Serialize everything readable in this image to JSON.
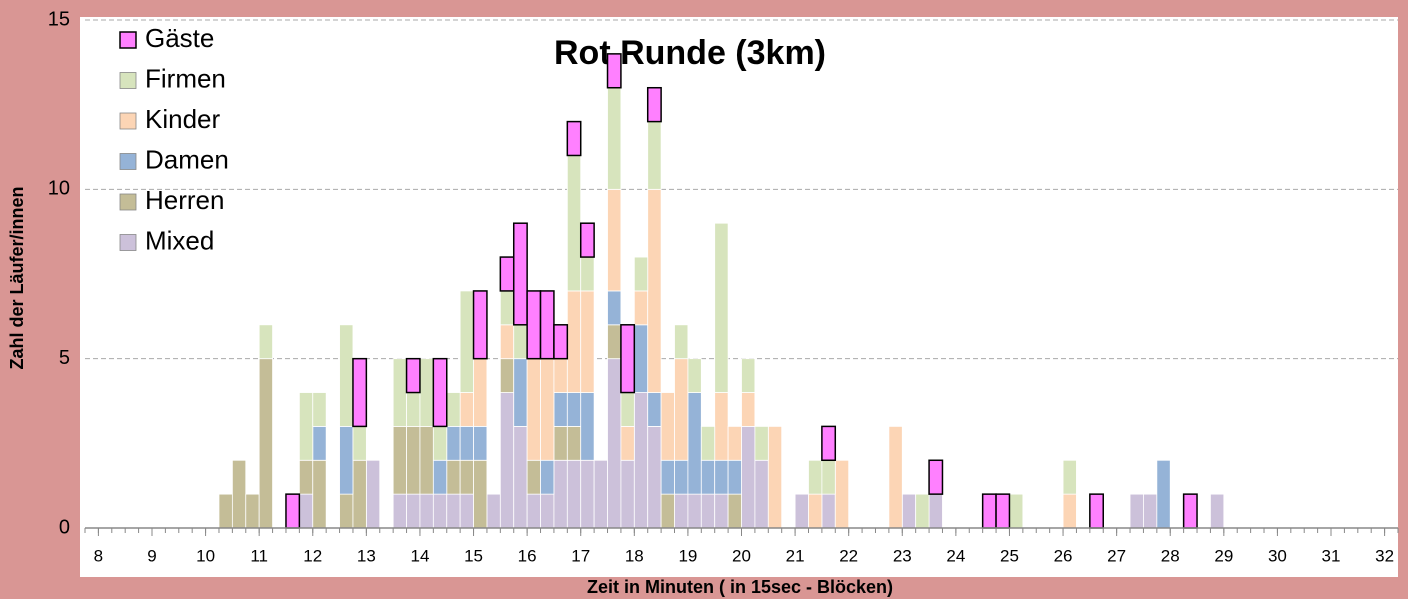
{
  "chart_data": {
    "type": "histogram",
    "title": "Rot Runde (3km)",
    "x_label": "Zeit in Minuten ( in 15sec - Blöcken)",
    "y_label": "Zahl der Läufer/innen",
    "stacked": true,
    "legend": "upper left",
    "grid": true,
    "xlim": [
      7.75,
      32.25
    ],
    "ylim": [
      0,
      15
    ],
    "xticks": [
      8,
      9,
      10,
      11,
      12,
      13,
      14,
      15,
      16,
      17,
      18,
      19,
      20,
      21,
      22,
      23,
      24,
      25,
      26,
      27,
      28,
      29,
      30,
      31,
      32
    ],
    "yticks": [
      0,
      5,
      10,
      15
    ],
    "bins": [
      7.75,
      8,
      8.25,
      8.5,
      8.75,
      9,
      9.25,
      9.5,
      9.75,
      10,
      10.25,
      10.5,
      10.75,
      11,
      11.25,
      11.5,
      11.75,
      12,
      12.25,
      12.5,
      12.75,
      13,
      13.25,
      13.5,
      13.75,
      14,
      14.25,
      14.5,
      14.75,
      15,
      15.25,
      15.5,
      15.75,
      16,
      16.25,
      16.5,
      16.75,
      17,
      17.25,
      17.5,
      17.75,
      18,
      18.25,
      18.5,
      18.75,
      19,
      19.25,
      19.5,
      19.75,
      20,
      20.25,
      20.5,
      20.75,
      21,
      21.25,
      21.5,
      21.75,
      22,
      22.25,
      22.5,
      22.75,
      23,
      23.25,
      23.5,
      23.75,
      24,
      24.25,
      24.5,
      24.75,
      25,
      25.25,
      25.5,
      25.75,
      26,
      26.25,
      26.5,
      26.75,
      27,
      27.25,
      27.5,
      27.75,
      28,
      28.25,
      28.5,
      28.75,
      29,
      29.25,
      29.5,
      29.75,
      30,
      30.25,
      30.5,
      30.75,
      31,
      31.25,
      31.5,
      31.75,
      32,
      32.25
    ],
    "series": [
      {
        "name": "Gäste",
        "color": "#ff80ff",
        "values": [
          0,
          0,
          0,
          0,
          0,
          0,
          0,
          0,
          0,
          0,
          0,
          0,
          0,
          0,
          0,
          1,
          0,
          0,
          0,
          0,
          2,
          0,
          0,
          0,
          1,
          0,
          2,
          0,
          0,
          2,
          0,
          1,
          3,
          2,
          2,
          1,
          1,
          1,
          0,
          1,
          2,
          0,
          1,
          0,
          0,
          0,
          0,
          0,
          0,
          0,
          0,
          0,
          0,
          0,
          0,
          1,
          0,
          0,
          0,
          0,
          0,
          0,
          0,
          1,
          0,
          0,
          0,
          1,
          1,
          0,
          0,
          0,
          0,
          0,
          0,
          1,
          0,
          0,
          0,
          0,
          0,
          0,
          1,
          0,
          0,
          0,
          0,
          0,
          0,
          0,
          0,
          0,
          0,
          0,
          0,
          0,
          0,
          0
        ]
      },
      {
        "name": "Firmen",
        "color": "#d7e4bd",
        "values": [
          0,
          0,
          0,
          0,
          0,
          0,
          0,
          0,
          0,
          0,
          0,
          0,
          0,
          1,
          0,
          0,
          2,
          1,
          0,
          3,
          1,
          0,
          0,
          2,
          1,
          2,
          1,
          1,
          3,
          0,
          0,
          1,
          1,
          0,
          0,
          0,
          4,
          1,
          0,
          3,
          1,
          1,
          2,
          0,
          1,
          1,
          1,
          5,
          0,
          1,
          1,
          0,
          0,
          0,
          1,
          1,
          0,
          0,
          0,
          0,
          0,
          0,
          1,
          0,
          0,
          0,
          0,
          0,
          0,
          1,
          0,
          0,
          0,
          1,
          0,
          0,
          0,
          0,
          0,
          0,
          0,
          0,
          0,
          0,
          0,
          0,
          0,
          0,
          0,
          0,
          0,
          0,
          0,
          0,
          0,
          0,
          0,
          0
        ]
      },
      {
        "name": "Kinder",
        "color": "#fcd5b5",
        "values": [
          0,
          0,
          0,
          0,
          0,
          0,
          0,
          0,
          0,
          0,
          0,
          0,
          0,
          0,
          0,
          0,
          0,
          0,
          0,
          0,
          0,
          0,
          0,
          0,
          0,
          0,
          0,
          0,
          1,
          2,
          0,
          1,
          0,
          3,
          3,
          1,
          3,
          3,
          0,
          3,
          1,
          1,
          6,
          2,
          3,
          0,
          0,
          2,
          1,
          1,
          0,
          3,
          0,
          0,
          1,
          0,
          2,
          0,
          0,
          0,
          3,
          0,
          0,
          0,
          0,
          0,
          0,
          0,
          0,
          0,
          0,
          0,
          0,
          1,
          0,
          0,
          0,
          0,
          0,
          0,
          0,
          0,
          0,
          0,
          0,
          0,
          0,
          0,
          0,
          0,
          0,
          0,
          0,
          0,
          0,
          0,
          0,
          0
        ]
      },
      {
        "name": "Damen",
        "color": "#95b3d7",
        "values": [
          0,
          0,
          0,
          0,
          0,
          0,
          0,
          0,
          0,
          0,
          0,
          0,
          0,
          0,
          0,
          0,
          0,
          1,
          0,
          2,
          0,
          0,
          0,
          0,
          0,
          0,
          1,
          1,
          1,
          1,
          0,
          0,
          2,
          0,
          1,
          1,
          1,
          2,
          0,
          1,
          0,
          2,
          1,
          1,
          1,
          3,
          1,
          1,
          1,
          0,
          0,
          0,
          0,
          0,
          0,
          0,
          0,
          0,
          0,
          0,
          0,
          0,
          0,
          0,
          0,
          0,
          0,
          0,
          0,
          0,
          0,
          0,
          0,
          0,
          0,
          0,
          0,
          0,
          0,
          0,
          2,
          0,
          0,
          0,
          0,
          0,
          0,
          0,
          0,
          0,
          0,
          0,
          0,
          0,
          0,
          0,
          0,
          0
        ]
      },
      {
        "name": "Herren",
        "color": "#c4bd97",
        "values": [
          0,
          0,
          0,
          0,
          0,
          0,
          0,
          0,
          0,
          0,
          1,
          2,
          1,
          5,
          0,
          0,
          1,
          2,
          0,
          1,
          2,
          0,
          0,
          2,
          2,
          2,
          0,
          1,
          1,
          2,
          0,
          1,
          0,
          1,
          0,
          1,
          1,
          0,
          0,
          1,
          0,
          0,
          0,
          1,
          0,
          0,
          0,
          0,
          1,
          0,
          0,
          0,
          0,
          0,
          0,
          0,
          0,
          0,
          0,
          0,
          0,
          0,
          0,
          0,
          0,
          0,
          0,
          0,
          0,
          0,
          0,
          0,
          0,
          0,
          0,
          0,
          0,
          0,
          0,
          0,
          0,
          0,
          0,
          0,
          0,
          0,
          0,
          0,
          0,
          0,
          0,
          0,
          0,
          0,
          0,
          0,
          0,
          0
        ]
      },
      {
        "name": "Mixed",
        "color": "#ccc1da",
        "values": [
          0,
          0,
          0,
          0,
          0,
          0,
          0,
          0,
          0,
          0,
          0,
          0,
          0,
          0,
          0,
          0,
          1,
          0,
          0,
          0,
          0,
          2,
          0,
          1,
          1,
          1,
          1,
          1,
          1,
          0,
          1,
          4,
          3,
          1,
          1,
          2,
          2,
          2,
          2,
          5,
          2,
          4,
          3,
          0,
          1,
          1,
          1,
          1,
          0,
          3,
          2,
          0,
          0,
          1,
          0,
          1,
          0,
          0,
          0,
          0,
          0,
          1,
          0,
          1,
          0,
          0,
          0,
          0,
          0,
          0,
          0,
          0,
          0,
          0,
          0,
          0,
          0,
          0,
          1,
          1,
          0,
          0,
          0,
          0,
          1,
          0,
          0,
          0,
          0,
          0,
          0,
          0,
          0,
          0,
          0,
          0,
          0,
          0
        ]
      }
    ]
  }
}
